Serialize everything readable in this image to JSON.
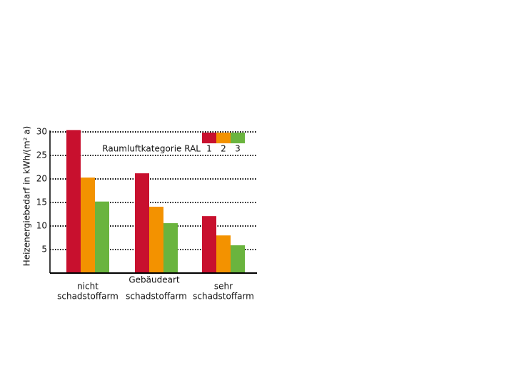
{
  "chart_data": {
    "type": "bar",
    "y_label": "Heizenergiebedarf in kWh/(m² a)",
    "x_label": "Gebäudeart",
    "legend_title": "Raumluftkategorie RAL",
    "categories": [
      [
        "nicht",
        "schadstoffarm"
      ],
      [
        "schadstoffarm"
      ],
      [
        "sehr",
        "schadstoffarm"
      ]
    ],
    "series": [
      {
        "name": "1",
        "color": "#c8102e",
        "values": [
          30.4,
          21.2,
          12.1
        ]
      },
      {
        "name": "2",
        "color": "#f39200",
        "values": [
          20.3,
          14.1,
          8.0
        ]
      },
      {
        "name": "3",
        "color": "#6ab43e",
        "values": [
          15.2,
          10.6,
          5.9
        ]
      }
    ],
    "ylim": [
      0,
      30
    ],
    "yticks": [
      5,
      10,
      15,
      20,
      25,
      30
    ],
    "grid": true
  }
}
